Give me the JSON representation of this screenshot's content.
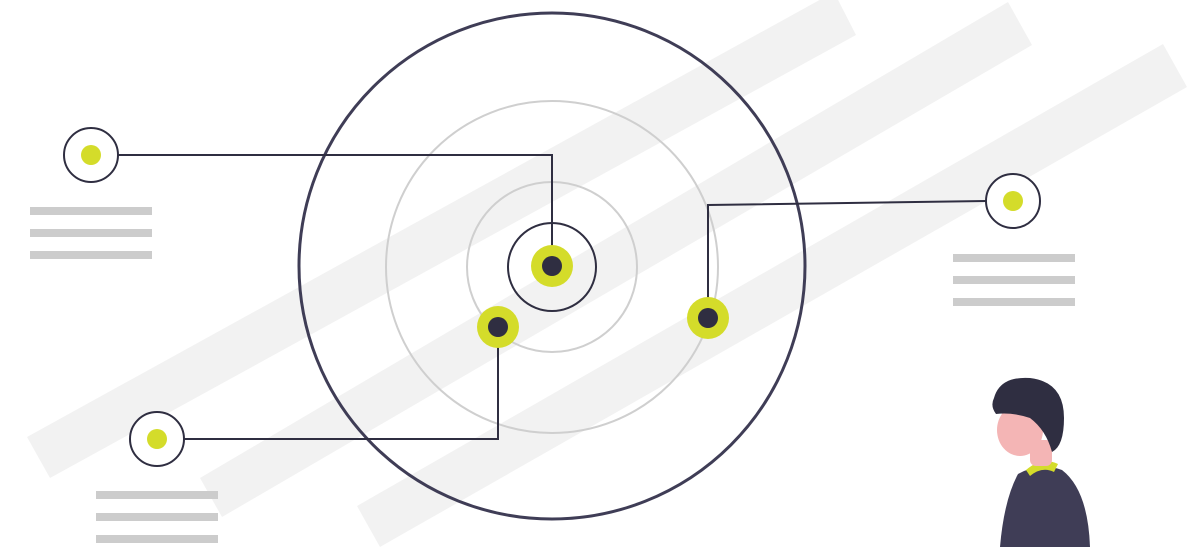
{
  "illustration": {
    "colors": {
      "background": "#ffffff",
      "stripe": "#f2f2f2",
      "ring_outer": "#3f3d56",
      "ring_inner": "#cfcfcf",
      "connector": "#2f2e41",
      "accent": "#d4dc2a",
      "dot": "#2f2e41",
      "text_placeholder": "#cccccc",
      "hair": "#2f2e41",
      "skin": "#f4b5b5",
      "shirt": "#3f3d56",
      "collar": "#d4dc2a"
    },
    "nodes": [
      {
        "name": "node-top-left",
        "kind": "ringed",
        "lines": 3
      },
      {
        "name": "node-bottom-left",
        "kind": "ringed",
        "lines": 3
      },
      {
        "name": "node-right",
        "kind": "ringed",
        "lines": 3
      }
    ],
    "icons": [
      "target-icon",
      "person-figure"
    ]
  }
}
